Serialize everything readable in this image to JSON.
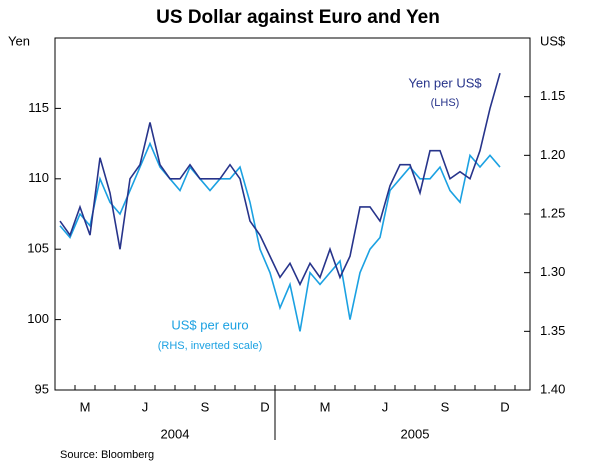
{
  "chart_data": {
    "type": "line",
    "title": "US Dollar against Euro and Yen",
    "y_unit": "Yen",
    "y2_unit": "US$",
    "source": "Source: Bloomberg",
    "year_labels": [
      "2004",
      "2005"
    ],
    "categories": [
      null,
      null,
      "M",
      null,
      null,
      null,
      null,
      null,
      "J",
      null,
      null,
      null,
      null,
      null,
      "S",
      null,
      null,
      null,
      null,
      null,
      "D",
      null,
      null,
      null,
      null,
      null,
      "M",
      null,
      null,
      null,
      null,
      null,
      "J",
      null,
      null,
      null,
      null,
      null,
      "S",
      null,
      null,
      null,
      null,
      null,
      "D"
    ],
    "ylim": [
      95,
      120
    ],
    "yticks": [
      95,
      100,
      105,
      110,
      115
    ],
    "y2lim": [
      1.4,
      1.1
    ],
    "y2ticks": [
      {
        "value": 1.15,
        "label": "1.15"
      },
      {
        "value": 1.2,
        "label": "1.20"
      },
      {
        "value": 1.25,
        "label": "1.25"
      },
      {
        "value": 1.3,
        "label": "1.30"
      },
      {
        "value": 1.35,
        "label": "1.35"
      },
      {
        "value": 1.4,
        "label": "1.40"
      }
    ],
    "series": [
      {
        "name": "Yen per US$",
        "note": "(LHS)",
        "color": "#27348b",
        "values": [
          107,
          106,
          108,
          106,
          111.5,
          109,
          105,
          110,
          111,
          114,
          111,
          110,
          110,
          111,
          110,
          110,
          110,
          111,
          110,
          107,
          106,
          104.5,
          103,
          104,
          102.5,
          104,
          103,
          105,
          103,
          104.5,
          108,
          108,
          107,
          109.5,
          111,
          111,
          109,
          112,
          112,
          110,
          110.5,
          110,
          112,
          115,
          117.5
        ]
      },
      {
        "name": "US$ per euro",
        "note": "(RHS, inverted scale)",
        "color": "#1ba1e2",
        "axis": "y2",
        "values": [
          1.26,
          1.27,
          1.25,
          1.26,
          1.22,
          1.24,
          1.25,
          1.23,
          1.21,
          1.19,
          1.21,
          1.22,
          1.23,
          1.21,
          1.22,
          1.23,
          1.22,
          1.22,
          1.21,
          1.24,
          1.28,
          1.3,
          1.33,
          1.31,
          1.35,
          1.3,
          1.31,
          1.3,
          1.29,
          1.34,
          1.3,
          1.28,
          1.27,
          1.23,
          1.22,
          1.21,
          1.22,
          1.22,
          1.21,
          1.23,
          1.24,
          1.2,
          1.21,
          1.2,
          1.21
        ]
      }
    ]
  }
}
